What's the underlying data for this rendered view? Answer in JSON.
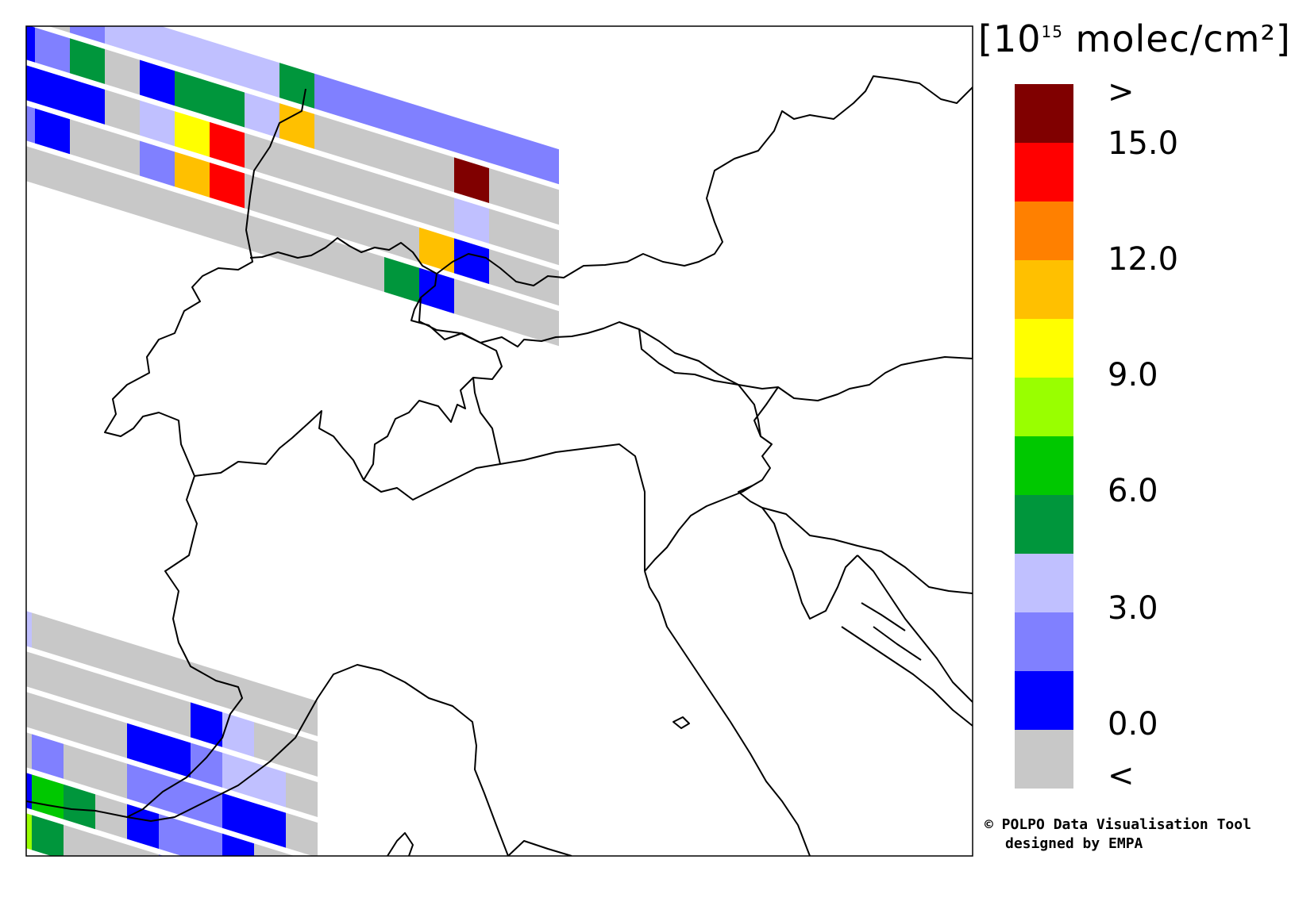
{
  "unit": {
    "prefix": "[10",
    "exponent": "15",
    "suffix": " molec/cm²]"
  },
  "colorbar": {
    "bins": [
      {
        "color": "#c8c8c8",
        "meaning": "below 0.0"
      },
      {
        "color": "#0000ff",
        "range": [
          0.0,
          1.5
        ]
      },
      {
        "color": "#8080ff",
        "range": [
          1.5,
          3.0
        ]
      },
      {
        "color": "#c0c0ff",
        "range": [
          3.0,
          4.5
        ]
      },
      {
        "color": "#00963c",
        "range": [
          4.5,
          6.0
        ]
      },
      {
        "color": "#00c800",
        "range": [
          6.0,
          7.5
        ]
      },
      {
        "color": "#99ff00",
        "range": [
          7.5,
          9.0
        ]
      },
      {
        "color": "#ffff00",
        "range": [
          9.0,
          10.5
        ]
      },
      {
        "color": "#ffc000",
        "range": [
          10.5,
          12.0
        ]
      },
      {
        "color": "#ff8000",
        "range": [
          12.0,
          13.5
        ]
      },
      {
        "color": "#ff0000",
        "range": [
          13.5,
          15.0
        ]
      },
      {
        "color": "#800000",
        "meaning": "above 15.0"
      }
    ],
    "labels": [
      ">",
      "15.0",
      "12.0",
      "9.0",
      "6.0",
      "3.0",
      "0.0",
      "<"
    ]
  },
  "credit": {
    "line1": "© POLPO Data Visualisation Tool",
    "line2": "designed by EMPA"
  },
  "swaths": [
    {
      "bin": 1,
      "cells": [
        0,
        0,
        2,
        3,
        3,
        3,
        3,
        3,
        4,
        2,
        2,
        2,
        2,
        2,
        2,
        2
      ]
    },
    {
      "bin": 2,
      "cells": [
        1,
        2,
        4,
        0,
        1,
        4,
        4,
        3,
        8,
        0,
        0,
        0,
        0,
        11,
        0,
        0
      ]
    },
    {
      "bin": 3,
      "cells": [
        1,
        1,
        1,
        0,
        3,
        7,
        10,
        0,
        0,
        0,
        0,
        0,
        0,
        3,
        0,
        0
      ]
    },
    {
      "bin": 4,
      "cells": [
        2,
        1,
        0,
        0,
        2,
        8,
        10,
        0,
        0,
        0,
        0,
        0,
        8,
        1,
        0,
        0
      ]
    },
    {
      "bin": 5,
      "cells": [
        0,
        0,
        0,
        0,
        0,
        0,
        0,
        0,
        0,
        0,
        0,
        4,
        1,
        0,
        0,
        0
      ]
    }
  ],
  "swaths_south": [
    {
      "cells": [
        3,
        0,
        0,
        0,
        0,
        0,
        0,
        0,
        0,
        0
      ]
    },
    {
      "cells": [
        0,
        0,
        0,
        0,
        0,
        0,
        1,
        3,
        0,
        0
      ]
    },
    {
      "cells": [
        0,
        0,
        0,
        0,
        1,
        1,
        2,
        3,
        3,
        0
      ]
    },
    {
      "cells": [
        0,
        2,
        0,
        0,
        2,
        2,
        2,
        1,
        1,
        0
      ]
    },
    {
      "cells": [
        1,
        5,
        4,
        0,
        1,
        2,
        2,
        1,
        0,
        0
      ]
    },
    {
      "cells": [
        6,
        4,
        0,
        0,
        0,
        2,
        1,
        1,
        0,
        0
      ]
    }
  ]
}
